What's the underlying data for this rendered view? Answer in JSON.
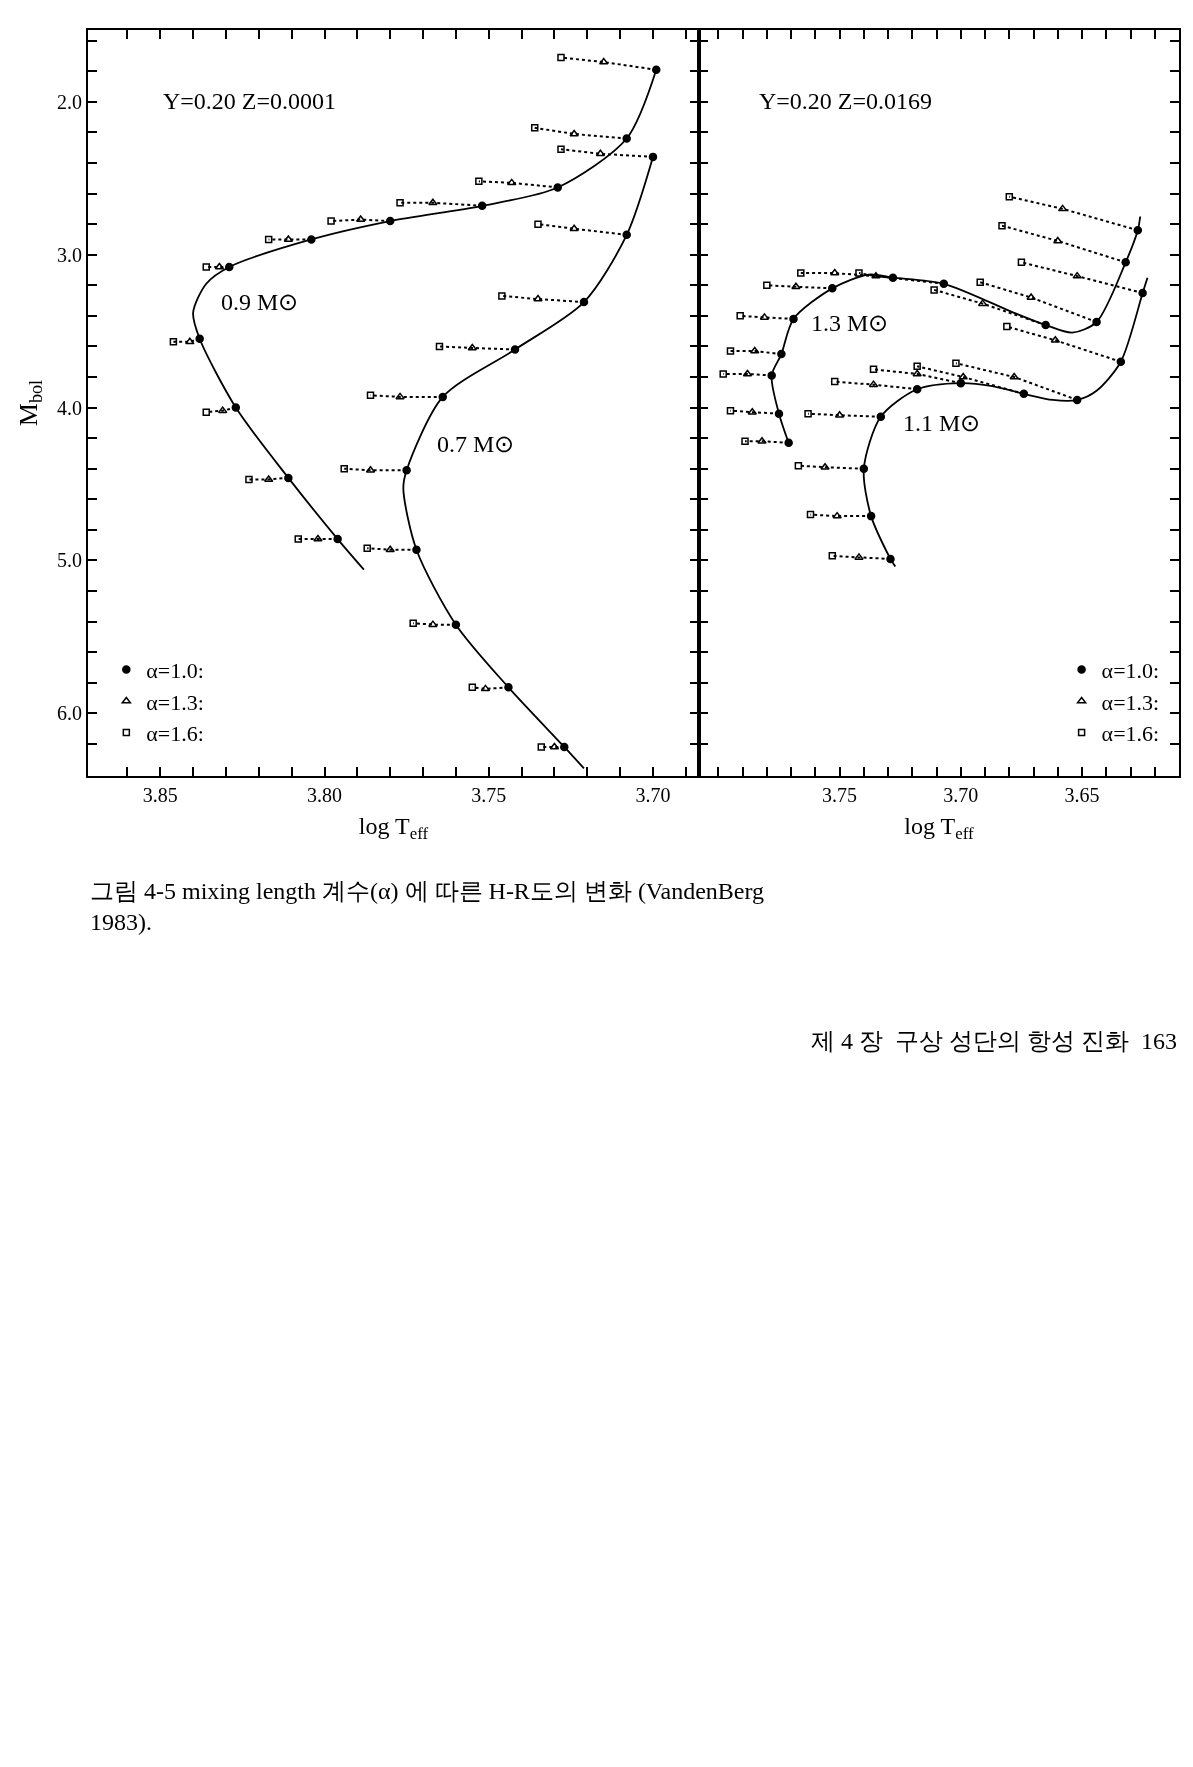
{
  "chart_data": [
    {
      "type": "line",
      "title": "Y=0.20 Z=0.0001",
      "xlabel": "log T$_{eff}$",
      "ylabel": "M$_{bol}$",
      "legend": "bottom left",
      "xlim": [
        3.872,
        3.686
      ],
      "ylim": [
        6.41,
        1.53
      ],
      "xticks": [
        {
          "value": 3.69,
          "label": null
        },
        {
          "value": 3.7,
          "label": "3.70"
        },
        {
          "value": 3.71,
          "label": null
        },
        {
          "value": 3.72,
          "label": null
        },
        {
          "value": 3.73,
          "label": null
        },
        {
          "value": 3.74,
          "label": null
        },
        {
          "value": 3.75,
          "label": "3.75"
        },
        {
          "value": 3.76,
          "label": null
        },
        {
          "value": 3.77,
          "label": null
        },
        {
          "value": 3.78,
          "label": null
        },
        {
          "value": 3.79,
          "label": null
        },
        {
          "value": 3.8,
          "label": "3.80"
        },
        {
          "value": 3.81,
          "label": null
        },
        {
          "value": 3.82,
          "label": null
        },
        {
          "value": 3.83,
          "label": null
        },
        {
          "value": 3.84,
          "label": null
        },
        {
          "value": 3.85,
          "label": "3.85"
        },
        {
          "value": 3.86,
          "label": null
        }
      ],
      "yticks": [
        {
          "value": 1.6,
          "label": null
        },
        {
          "value": 1.8,
          "label": null
        },
        {
          "value": 2,
          "label": "2.0"
        },
        {
          "value": 2.2,
          "label": null
        },
        {
          "value": 2.4,
          "label": null
        },
        {
          "value": 2.6,
          "label": null
        },
        {
          "value": 2.8,
          "label": null
        },
        {
          "value": 3,
          "label": "3.0"
        },
        {
          "value": 3.2,
          "label": null
        },
        {
          "value": 3.4,
          "label": null
        },
        {
          "value": 3.6,
          "label": null
        },
        {
          "value": 3.8,
          "label": null
        },
        {
          "value": 4,
          "label": "4.0"
        },
        {
          "value": 4.2,
          "label": null
        },
        {
          "value": 4.4,
          "label": null
        },
        {
          "value": 4.6,
          "label": null
        },
        {
          "value": 4.8,
          "label": null
        },
        {
          "value": 5,
          "label": "5.0"
        },
        {
          "value": 5.2,
          "label": null
        },
        {
          "value": 5.4,
          "label": null
        },
        {
          "value": 5.6,
          "label": null
        },
        {
          "value": 5.8,
          "label": null
        },
        {
          "value": 6,
          "label": "6.0"
        },
        {
          "value": 6.2,
          "label": null
        }
      ],
      "annotations": [
        "0.9 M⊙",
        "0.7 M⊙",
        "그림 4-5 mixing length 계수(α) 에 따른 H-R도의 변화 (VandenBerg\n1983).",
        "제 4 장  구상 성단의 항성 진화  163"
      ],
      "series": [
        {
          "color": "#000000",
          "line_style": "solid",
          "marker": "none",
          "x": [
            3.699,
            3.708,
            3.729,
            3.752,
            3.78,
            3.804,
            3.829,
            3.836,
            3.84,
            3.838,
            3.827,
            3.811,
            3.796,
            3.788
          ],
          "values": [
            1.79,
            2.24,
            2.56,
            2.68,
            2.78,
            2.9,
            3.08,
            3.19,
            3.38,
            3.55,
            4.0,
            4.46,
            4.86,
            5.06
          ]
        },
        {
          "color": "#000000",
          "line_style": "solid",
          "marker": "none",
          "x": [
            3.7,
            3.708,
            3.721,
            3.742,
            3.764,
            3.775,
            3.776,
            3.772,
            3.76,
            3.744,
            3.727,
            3.721
          ],
          "values": [
            2.36,
            2.87,
            3.31,
            3.62,
            3.93,
            4.41,
            4.53,
            4.93,
            5.42,
            5.83,
            6.22,
            6.36
          ]
        },
        {
          "color": "#000000",
          "line_style": "dotted",
          "marker": "none",
          "x": [
            3.699,
            3.715,
            3.728
          ],
          "values": [
            1.79,
            1.74,
            1.71
          ]
        },
        {
          "color": "#000000",
          "line_style": "dotted",
          "marker": "none",
          "x": [
            3.708,
            3.724,
            3.736
          ],
          "values": [
            2.24,
            2.21,
            2.17
          ]
        },
        {
          "color": "#000000",
          "line_style": "dotted",
          "marker": "none",
          "x": [
            3.729,
            3.743,
            3.753
          ],
          "values": [
            2.56,
            2.53,
            2.52
          ]
        },
        {
          "color": "#000000",
          "line_style": "dotted",
          "marker": "none",
          "x": [
            3.752,
            3.767,
            3.777
          ],
          "values": [
            2.68,
            2.66,
            2.66
          ]
        },
        {
          "color": "#000000",
          "line_style": "dotted",
          "marker": "none",
          "x": [
            3.78,
            3.789,
            3.798
          ],
          "values": [
            2.78,
            2.77,
            2.78
          ]
        },
        {
          "color": "#000000",
          "line_style": "dotted",
          "marker": "none",
          "x": [
            3.804,
            3.811,
            3.817
          ],
          "values": [
            2.9,
            2.9,
            2.9
          ]
        },
        {
          "color": "#000000",
          "line_style": "dotted",
          "marker": "none",
          "x": [
            3.838,
            3.841,
            3.846
          ],
          "values": [
            3.55,
            3.57,
            3.57
          ]
        },
        {
          "color": "#000000",
          "line_style": "dotted",
          "marker": "none",
          "x": [
            3.827,
            3.831,
            3.836
          ],
          "values": [
            4.0,
            4.02,
            4.03
          ]
        },
        {
          "color": "#000000",
          "line_style": "dotted",
          "marker": "none",
          "x": [
            3.811,
            3.817,
            3.823
          ],
          "values": [
            4.46,
            4.47,
            4.47
          ]
        },
        {
          "color": "#000000",
          "line_style": "dotted",
          "marker": "none",
          "x": [
            3.796,
            3.802,
            3.808
          ],
          "values": [
            4.86,
            4.86,
            4.86
          ]
        },
        {
          "color": "#000000",
          "line_style": "dotted",
          "marker": "none",
          "x": [
            3.7,
            3.716,
            3.728
          ],
          "values": [
            2.36,
            2.34,
            2.31
          ]
        },
        {
          "color": "#000000",
          "line_style": "dotted",
          "marker": "none",
          "x": [
            3.708,
            3.724,
            3.735
          ],
          "values": [
            2.87,
            2.83,
            2.8
          ]
        },
        {
          "color": "#000000",
          "line_style": "dotted",
          "marker": "none",
          "x": [
            3.721,
            3.735,
            3.746
          ],
          "values": [
            3.31,
            3.29,
            3.27
          ]
        },
        {
          "color": "#000000",
          "line_style": "dotted",
          "marker": "none",
          "x": [
            3.742,
            3.755,
            3.765
          ],
          "values": [
            3.62,
            3.61,
            3.6
          ]
        },
        {
          "color": "#000000",
          "line_style": "dotted",
          "marker": "none",
          "x": [
            3.764,
            3.777,
            3.786
          ],
          "values": [
            3.93,
            3.93,
            3.92
          ]
        },
        {
          "color": "#000000",
          "line_style": "dotted",
          "marker": "none",
          "x": [
            3.775,
            3.786,
            3.794
          ],
          "values": [
            4.41,
            4.41,
            4.4
          ]
        },
        {
          "color": "#000000",
          "line_style": "dotted",
          "marker": "none",
          "x": [
            3.772,
            3.78,
            3.787
          ],
          "values": [
            4.93,
            4.93,
            4.92
          ]
        },
        {
          "color": "#000000",
          "line_style": "dotted",
          "marker": "none",
          "x": [
            3.76,
            3.767,
            3.773
          ],
          "values": [
            5.42,
            5.42,
            5.41
          ]
        },
        {
          "color": "#000000",
          "line_style": "dotted",
          "marker": "none",
          "x": [
            3.744,
            3.751,
            3.755
          ],
          "values": [
            5.83,
            5.84,
            5.83
          ]
        },
        {
          "color": "#000000",
          "line_style": "dotted",
          "marker": "none",
          "x": [
            3.727,
            3.73,
            3.734
          ],
          "values": [
            6.22,
            6.22,
            6.22
          ]
        },
        {
          "color": "#000000",
          "line_style": "dotted",
          "marker": "none",
          "x": [
            3.829,
            3.832,
            3.836
          ],
          "values": [
            3.08,
            3.08,
            3.08
          ]
        },
        {
          "type": "scatter",
          "name": "α=1.0:",
          "color": "#000000",
          "marker": "circle",
          "x": [
            3.699,
            3.708,
            3.729,
            3.752,
            3.78,
            3.804,
            3.829,
            3.838,
            3.827,
            3.811,
            3.796,
            3.7,
            3.708,
            3.721,
            3.742,
            3.764,
            3.775,
            3.772,
            3.76,
            3.744,
            3.727
          ],
          "values": [
            1.79,
            2.24,
            2.56,
            2.68,
            2.78,
            2.9,
            3.08,
            3.55,
            4.0,
            4.46,
            4.86,
            2.36,
            2.87,
            3.31,
            3.62,
            3.93,
            4.41,
            4.93,
            5.42,
            5.83,
            6.22
          ]
        },
        {
          "type": "scatter",
          "name": "α=1.3:",
          "color": "#000000",
          "marker": "triangle",
          "x": [
            3.715,
            3.724,
            3.743,
            3.767,
            3.789,
            3.811,
            3.832,
            3.841,
            3.831,
            3.817,
            3.802,
            3.716,
            3.724,
            3.735,
            3.755,
            3.777,
            3.786,
            3.78,
            3.767,
            3.751,
            3.73
          ],
          "values": [
            1.74,
            2.21,
            2.53,
            2.66,
            2.77,
            2.9,
            3.08,
            3.57,
            4.02,
            4.47,
            4.86,
            2.34,
            2.83,
            3.29,
            3.61,
            3.93,
            4.41,
            4.93,
            5.42,
            5.84,
            6.22
          ]
        },
        {
          "type": "scatter",
          "name": "α=1.6:",
          "color": "#000000",
          "marker": "square",
          "x": [
            3.728,
            3.736,
            3.753,
            3.777,
            3.798,
            3.817,
            3.836,
            3.846,
            3.836,
            3.823,
            3.808,
            3.728,
            3.735,
            3.746,
            3.765,
            3.786,
            3.794,
            3.787,
            3.773,
            3.755,
            3.734
          ],
          "values": [
            1.71,
            2.17,
            2.52,
            2.66,
            2.78,
            2.9,
            3.08,
            3.57,
            4.03,
            4.47,
            4.86,
            2.31,
            2.8,
            3.27,
            3.6,
            3.92,
            4.4,
            4.92,
            5.41,
            5.83,
            6.22
          ]
        }
      ]
    },
    {
      "type": "line",
      "title": "Y=0.20 Z=0.0169",
      "xlabel": "log T$_{eff}$",
      "legend": "bottom right",
      "tick_labels": "x",
      "xlim": [
        3.808,
        3.61
      ],
      "ylim": [
        6.41,
        1.53
      ],
      "xticks": [
        {
          "value": 3.62,
          "label": null
        },
        {
          "value": 3.63,
          "label": null
        },
        {
          "value": 3.64,
          "label": null
        },
        {
          "value": 3.65,
          "label": "3.65"
        },
        {
          "value": 3.66,
          "label": null
        },
        {
          "value": 3.67,
          "label": null
        },
        {
          "value": 3.68,
          "label": null
        },
        {
          "value": 3.69,
          "label": null
        },
        {
          "value": 3.7,
          "label": "3.70"
        },
        {
          "value": 3.71,
          "label": null
        },
        {
          "value": 3.72,
          "label": null
        },
        {
          "value": 3.73,
          "label": null
        },
        {
          "value": 3.74,
          "label": null
        },
        {
          "value": 3.75,
          "label": "3.75"
        },
        {
          "value": 3.76,
          "label": null
        },
        {
          "value": 3.77,
          "label": null
        },
        {
          "value": 3.78,
          "label": null
        },
        {
          "value": 3.79,
          "label": null
        },
        {
          "value": 3.8,
          "label": null
        }
      ],
      "yticks": [
        {
          "value": 1.6,
          "label": null
        },
        {
          "value": 1.8,
          "label": null
        },
        {
          "value": 2,
          "label": null
        },
        {
          "value": 2.2,
          "label": null
        },
        {
          "value": 2.4,
          "label": null
        },
        {
          "value": 2.6,
          "label": null
        },
        {
          "value": 2.8,
          "label": null
        },
        {
          "value": 3,
          "label": null
        },
        {
          "value": 3.2,
          "label": null
        },
        {
          "value": 3.4,
          "label": null
        },
        {
          "value": 3.6,
          "label": null
        },
        {
          "value": 3.8,
          "label": null
        },
        {
          "value": 4,
          "label": null
        },
        {
          "value": 4.2,
          "label": null
        },
        {
          "value": 4.4,
          "label": null
        },
        {
          "value": 4.6,
          "label": null
        },
        {
          "value": 4.8,
          "label": null
        },
        {
          "value": 5,
          "label": null
        },
        {
          "value": 5.2,
          "label": null
        },
        {
          "value": 5.4,
          "label": null
        },
        {
          "value": 5.6,
          "label": null
        },
        {
          "value": 5.8,
          "label": null
        },
        {
          "value": 6,
          "label": null
        },
        {
          "value": 6.2,
          "label": null
        }
      ],
      "annotations": [
        "1.3 M⊙",
        "1.1 M⊙"
      ],
      "series": [
        {
          "color": "#000000",
          "line_style": "solid",
          "marker": "none",
          "x": [
            3.626,
            3.627,
            3.632,
            3.644,
            3.654,
            3.665,
            3.678,
            3.707,
            3.728,
            3.738,
            3.753,
            3.769,
            3.774,
            3.778,
            3.775,
            3.771
          ],
          "values": [
            2.75,
            2.84,
            3.05,
            3.44,
            3.51,
            3.46,
            3.38,
            3.19,
            3.15,
            3.13,
            3.22,
            3.42,
            3.65,
            3.79,
            4.04,
            4.23
          ]
        },
        {
          "color": "#000000",
          "line_style": "solid",
          "marker": "none",
          "x": [
            3.623,
            3.625,
            3.634,
            3.644,
            3.652,
            3.662,
            3.674,
            3.687,
            3.7,
            3.718,
            3.733,
            3.74,
            3.737,
            3.729,
            3.727
          ],
          "values": [
            3.15,
            3.25,
            3.7,
            3.89,
            3.95,
            3.95,
            3.91,
            3.86,
            3.84,
            3.88,
            4.06,
            4.4,
            4.71,
            4.99,
            5.04
          ]
        },
        {
          "color": "#000000",
          "line_style": "dotted",
          "marker": "none",
          "x": [
            3.627,
            3.658,
            3.68
          ],
          "values": [
            2.84,
            2.7,
            2.62
          ]
        },
        {
          "color": "#000000",
          "line_style": "dotted",
          "marker": "none",
          "x": [
            3.632,
            3.66,
            3.683
          ],
          "values": [
            3.05,
            2.91,
            2.81
          ]
        },
        {
          "color": "#000000",
          "line_style": "dotted",
          "marker": "none",
          "x": [
            3.644,
            3.671,
            3.692
          ],
          "values": [
            3.44,
            3.28,
            3.18
          ]
        },
        {
          "color": "#000000",
          "line_style": "dotted",
          "marker": "none",
          "x": [
            3.665,
            3.691,
            3.711
          ],
          "values": [
            3.46,
            3.32,
            3.23
          ]
        },
        {
          "color": "#000000",
          "line_style": "dotted",
          "marker": "none",
          "x": [
            3.707,
            3.735,
            3.742
          ],
          "values": [
            3.19,
            3.14,
            3.12
          ]
        },
        {
          "color": "#000000",
          "line_style": "dotted",
          "marker": "none",
          "x": [
            3.728,
            3.752,
            3.766
          ],
          "values": [
            3.15,
            3.12,
            3.12
          ]
        },
        {
          "color": "#000000",
          "line_style": "dotted",
          "marker": "none",
          "x": [
            3.753,
            3.768,
            3.78
          ],
          "values": [
            3.22,
            3.21,
            3.2
          ]
        },
        {
          "color": "#000000",
          "line_style": "dotted",
          "marker": "none",
          "x": [
            3.769,
            3.781,
            3.791
          ],
          "values": [
            3.42,
            3.41,
            3.4
          ]
        },
        {
          "color": "#000000",
          "line_style": "dotted",
          "marker": "none",
          "x": [
            3.774,
            3.785,
            3.795
          ],
          "values": [
            3.65,
            3.63,
            3.63
          ]
        },
        {
          "color": "#000000",
          "line_style": "dotted",
          "marker": "none",
          "x": [
            3.778,
            3.788,
            3.798
          ],
          "values": [
            3.79,
            3.78,
            3.78
          ]
        },
        {
          "color": "#000000",
          "line_style": "dotted",
          "marker": "none",
          "x": [
            3.775,
            3.786,
            3.795
          ],
          "values": [
            4.04,
            4.03,
            4.02
          ]
        },
        {
          "color": "#000000",
          "line_style": "dotted",
          "marker": "none",
          "x": [
            3.771,
            3.782,
            3.789
          ],
          "values": [
            4.23,
            4.22,
            4.22
          ]
        },
        {
          "color": "#000000",
          "line_style": "dotted",
          "marker": "none",
          "x": [
            3.625,
            3.652,
            3.675
          ],
          "values": [
            3.25,
            3.14,
            3.05
          ]
        },
        {
          "color": "#000000",
          "line_style": "dotted",
          "marker": "none",
          "x": [
            3.634,
            3.661,
            3.681
          ],
          "values": [
            3.7,
            3.56,
            3.47
          ]
        },
        {
          "color": "#000000",
          "line_style": "dotted",
          "marker": "none",
          "x": [
            3.652,
            3.678,
            3.702
          ],
          "values": [
            3.95,
            3.8,
            3.71
          ]
        },
        {
          "color": "#000000",
          "line_style": "dotted",
          "marker": "none",
          "x": [
            3.674,
            3.699,
            3.718
          ],
          "values": [
            3.91,
            3.8,
            3.73
          ]
        },
        {
          "color": "#000000",
          "line_style": "dotted",
          "marker": "none",
          "x": [
            3.7,
            3.718,
            3.736
          ],
          "values": [
            3.84,
            3.78,
            3.75
          ]
        },
        {
          "color": "#000000",
          "line_style": "dotted",
          "marker": "none",
          "x": [
            3.718,
            3.736,
            3.752
          ],
          "values": [
            3.88,
            3.85,
            3.83
          ]
        },
        {
          "color": "#000000",
          "line_style": "dotted",
          "marker": "none",
          "x": [
            3.733,
            3.75,
            3.763
          ],
          "values": [
            4.06,
            4.05,
            4.04
          ]
        },
        {
          "color": "#000000",
          "line_style": "dotted",
          "marker": "none",
          "x": [
            3.74,
            3.756,
            3.767
          ],
          "values": [
            4.4,
            4.39,
            4.38
          ]
        },
        {
          "color": "#000000",
          "line_style": "dotted",
          "marker": "none",
          "x": [
            3.737,
            3.751,
            3.762
          ],
          "values": [
            4.71,
            4.71,
            4.7
          ]
        },
        {
          "color": "#000000",
          "line_style": "dotted",
          "marker": "none",
          "x": [
            3.729,
            3.742,
            3.753
          ],
          "values": [
            4.99,
            4.98,
            4.97
          ]
        },
        {
          "type": "scatter",
          "name": "α=1.0:",
          "color": "#000000",
          "marker": "circle",
          "x": [
            3.627,
            3.632,
            3.644,
            3.665,
            3.707,
            3.728,
            3.753,
            3.769,
            3.774,
            3.778,
            3.775,
            3.771,
            3.625,
            3.634,
            3.652,
            3.674,
            3.7,
            3.718,
            3.733,
            3.74,
            3.737,
            3.729
          ],
          "values": [
            2.84,
            3.05,
            3.44,
            3.46,
            3.19,
            3.15,
            3.22,
            3.42,
            3.65,
            3.79,
            4.04,
            4.23,
            3.25,
            3.7,
            3.95,
            3.91,
            3.84,
            3.88,
            4.06,
            4.4,
            4.71,
            4.99
          ]
        },
        {
          "type": "scatter",
          "name": "α=1.3:",
          "color": "#000000",
          "marker": "triangle",
          "x": [
            3.658,
            3.66,
            3.671,
            3.691,
            3.735,
            3.752,
            3.768,
            3.781,
            3.785,
            3.788,
            3.786,
            3.782,
            3.652,
            3.661,
            3.678,
            3.699,
            3.718,
            3.736,
            3.75,
            3.756,
            3.751,
            3.742
          ],
          "values": [
            2.7,
            2.91,
            3.28,
            3.32,
            3.14,
            3.12,
            3.21,
            3.41,
            3.63,
            3.78,
            4.03,
            4.22,
            3.14,
            3.56,
            3.8,
            3.8,
            3.78,
            3.85,
            4.05,
            4.39,
            4.71,
            4.98
          ]
        },
        {
          "type": "scatter",
          "name": "α=1.6:",
          "color": "#000000",
          "marker": "square",
          "x": [
            3.68,
            3.683,
            3.692,
            3.711,
            3.742,
            3.766,
            3.78,
            3.791,
            3.795,
            3.798,
            3.795,
            3.789,
            3.675,
            3.681,
            3.702,
            3.718,
            3.736,
            3.752,
            3.763,
            3.767,
            3.762,
            3.753
          ],
          "values": [
            2.62,
            2.81,
            3.18,
            3.23,
            3.12,
            3.12,
            3.2,
            3.4,
            3.63,
            3.78,
            4.02,
            4.22,
            3.05,
            3.47,
            3.71,
            3.73,
            3.75,
            3.83,
            4.04,
            4.38,
            4.7,
            4.97
          ]
        }
      ]
    }
  ]
}
